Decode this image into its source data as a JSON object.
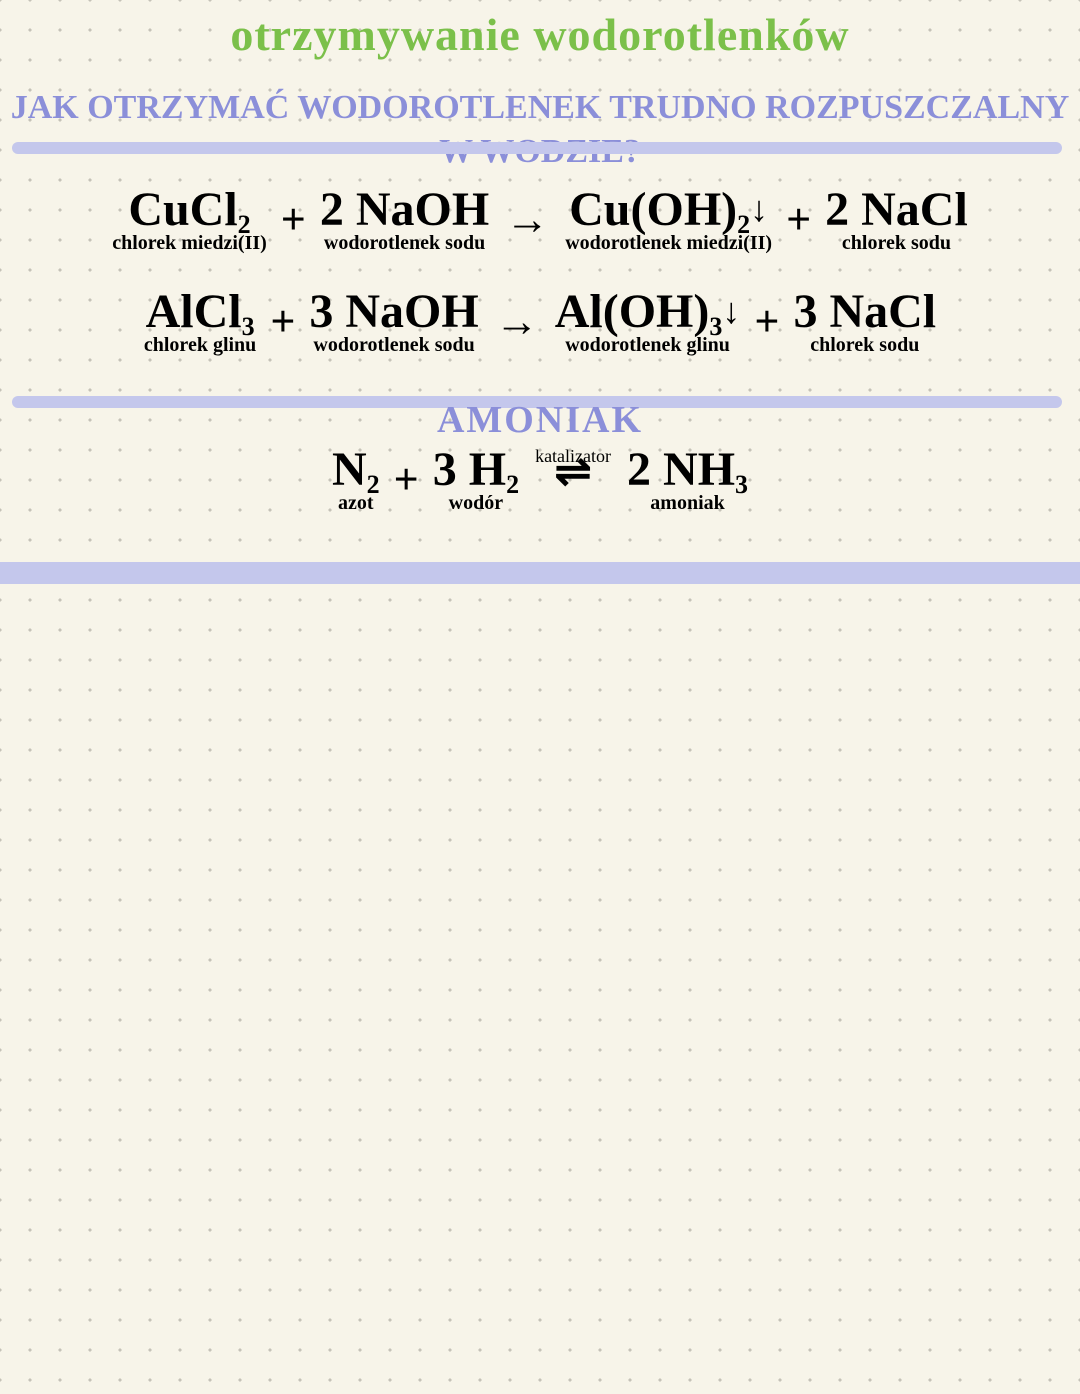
{
  "colors": {
    "background": "#f7f4e9",
    "dot": "#c5c2b8",
    "title_green": "#7bc04a",
    "heading_purple": "#8b8fd9",
    "rule_purple": "#c4c7ec",
    "ink": "#000000"
  },
  "title": "otrzymywanie wodorotlenków",
  "subtitle": "Jak otrzymać wodorotlenek trudno rozpuszczalny w wodzie?",
  "section2_title": "AMONIAK",
  "equations": {
    "eq1": {
      "t1": {
        "formula": "CuCl",
        "sub": "2",
        "label": "chlorek miedzi(II)"
      },
      "op1": "+",
      "t2": {
        "coef": "2",
        "formula": "NaOH",
        "label": "wodorotlenek sodu"
      },
      "arrow": "→",
      "t3": {
        "formula": "Cu(OH)",
        "sub": "2",
        "down": "↓",
        "label": "wodorotlenek miedzi(II)"
      },
      "op2": "+",
      "t4": {
        "coef": "2",
        "formula": "NaCl",
        "label": "chlorek sodu"
      }
    },
    "eq2": {
      "t1": {
        "formula": "AlCl",
        "sub": "3",
        "label": "chlorek glinu"
      },
      "op1": "+",
      "t2": {
        "coef": "3",
        "formula": "NaOH",
        "label": "wodorotlenek sodu"
      },
      "arrow": "→",
      "t3": {
        "formula": "Al(OH)",
        "sub": "3",
        "down": "↓",
        "label": "wodorotlenek glinu"
      },
      "op2": "+",
      "t4": {
        "coef": "3",
        "formula": "NaCl",
        "label": "chlorek sodu"
      }
    },
    "eq3": {
      "t1": {
        "formula": "N",
        "sub": "2",
        "label": "azot"
      },
      "op1": "+",
      "t2": {
        "coef": "3",
        "formula": "H",
        "sub": "2",
        "label": "wodór"
      },
      "catalyst": "katalizator",
      "arrow": "⇌",
      "t3": {
        "coef": "2",
        "formula": "NH",
        "sub": "3",
        "label": "amoniak"
      }
    }
  }
}
